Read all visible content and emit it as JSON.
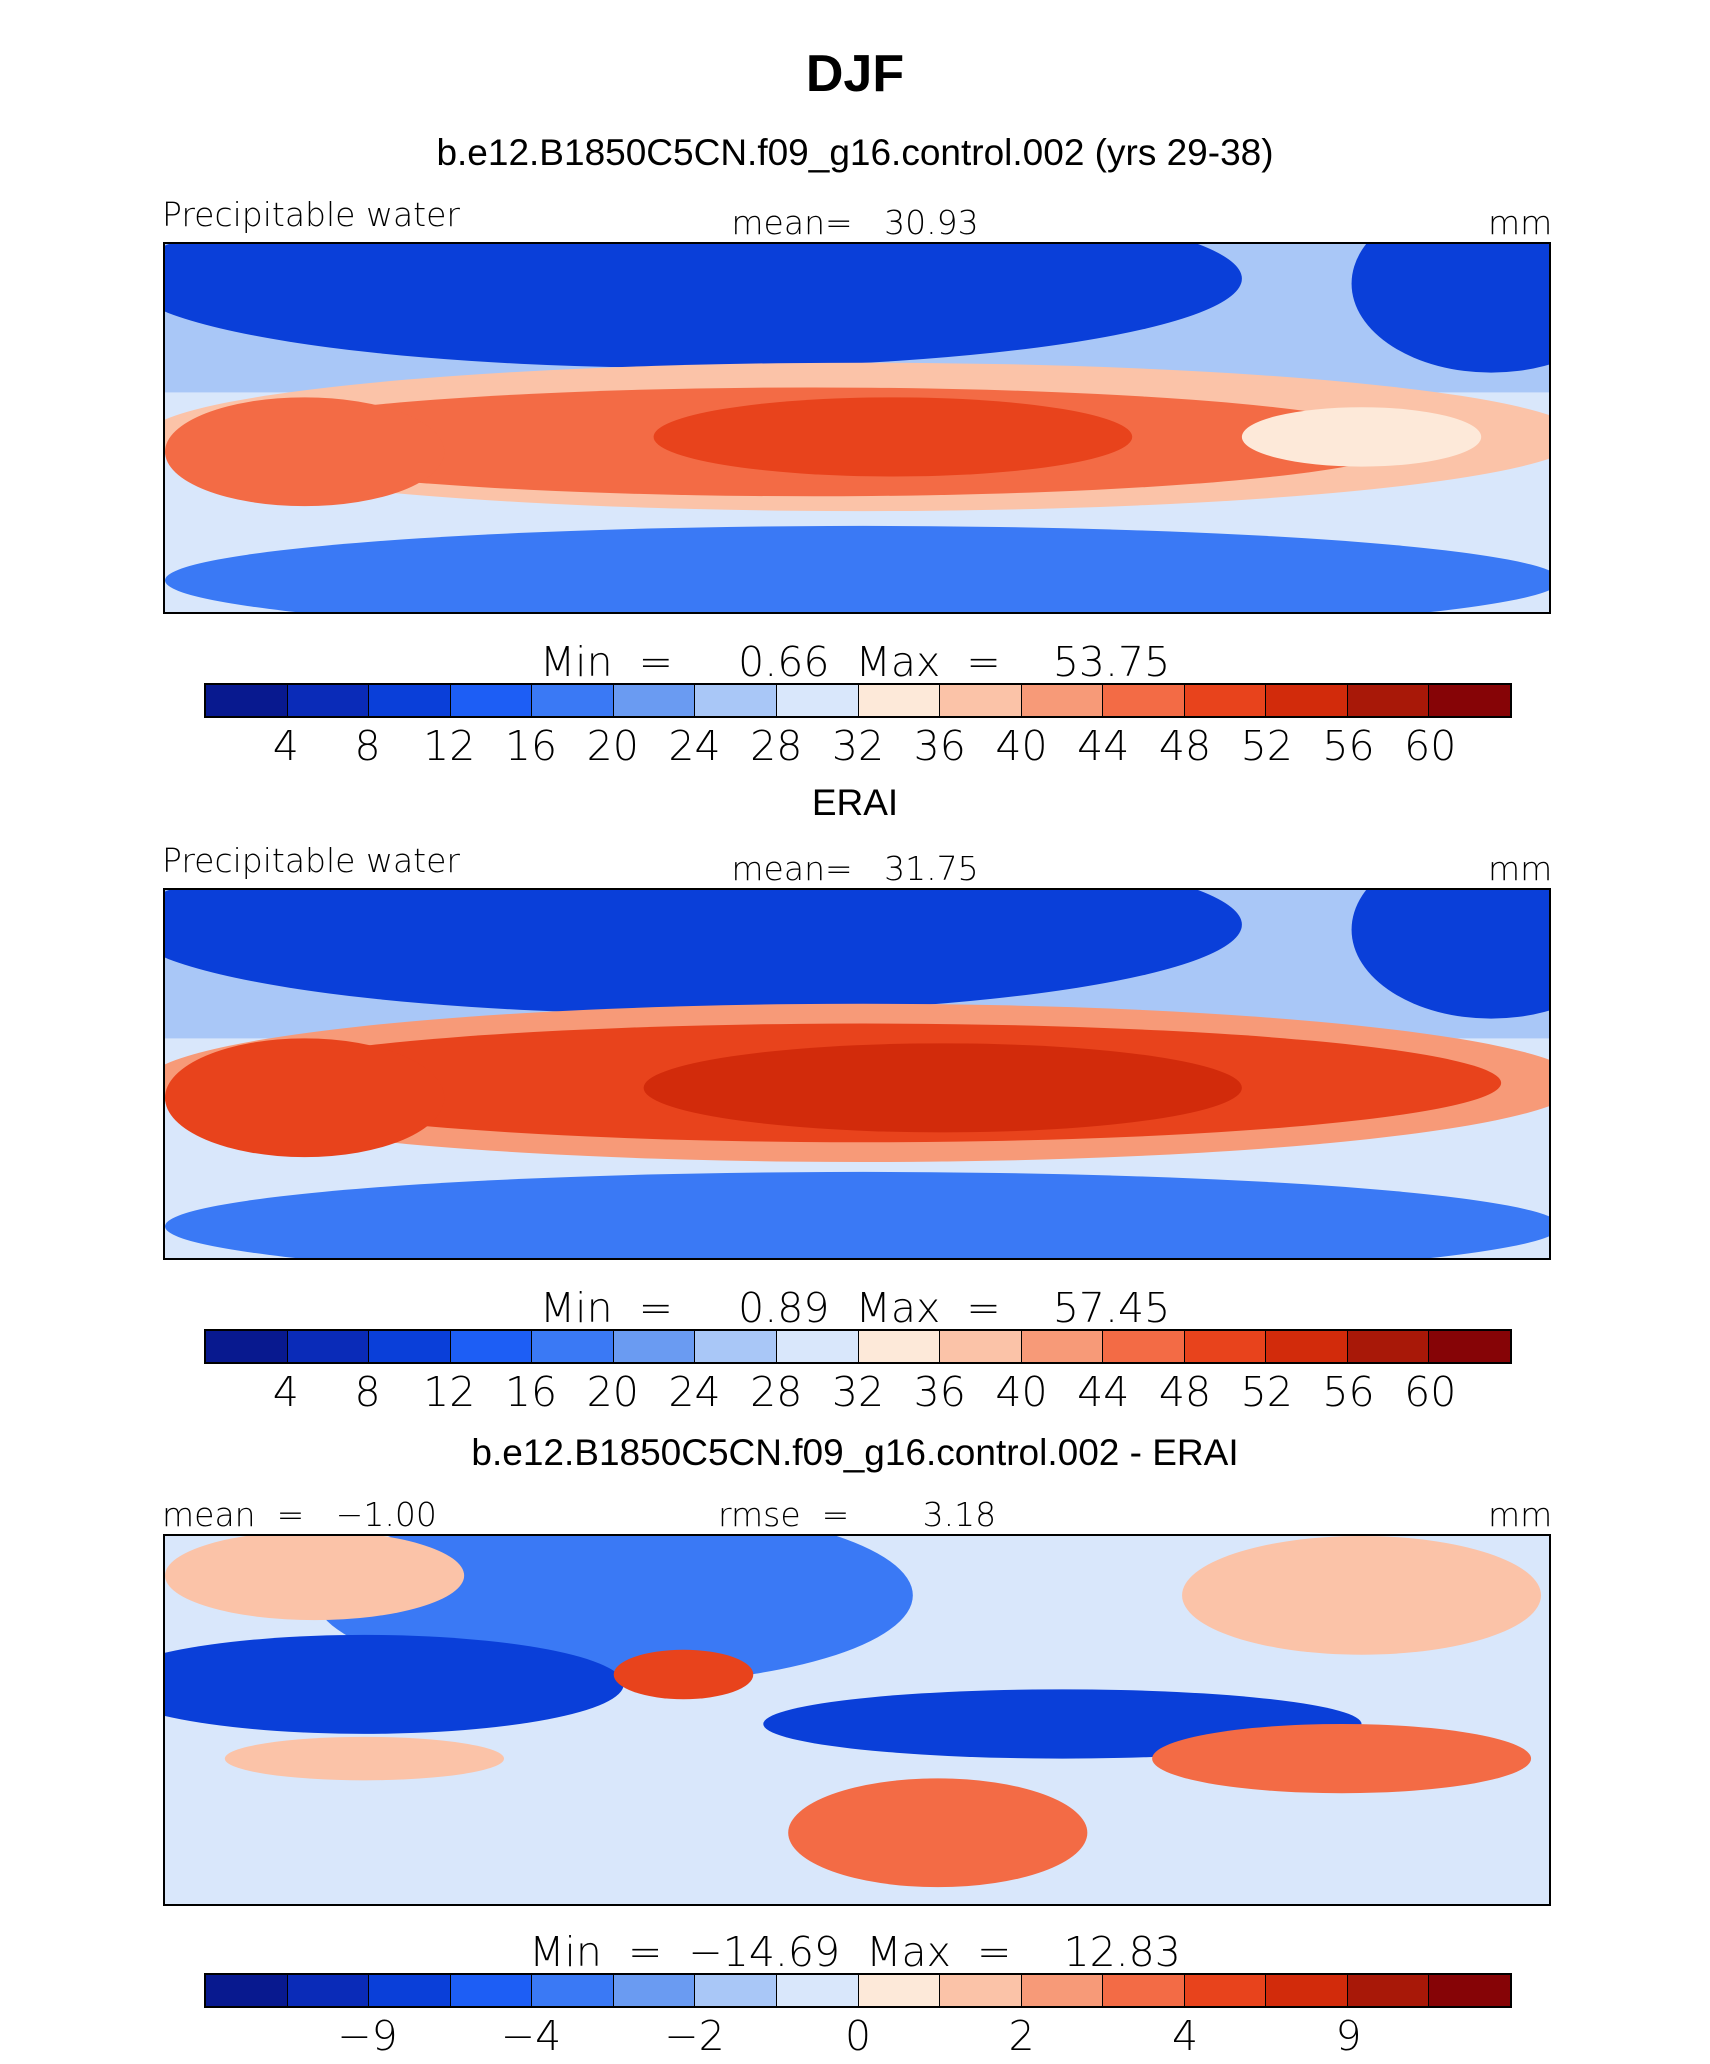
{
  "title": "DJF",
  "colorbar_colors": [
    "#08198f",
    "#0a2bb8",
    "#0a3fd9",
    "#1d5ef5",
    "#3a79f5",
    "#6a9bf2",
    "#a9c7f7",
    "#d9e7fb",
    "#fde9d9",
    "#fbc3a8",
    "#f79a78",
    "#f36b45",
    "#e8431c",
    "#d22b0b",
    "#a81808",
    "#860406"
  ],
  "panels": [
    {
      "title": "b.e12.B1850C5CN.f09_g16.control.002 (yrs 29-38)",
      "left_label": "Precipitable water",
      "center_label": "mean=   30.93",
      "right_label": "mm",
      "minmax": "Min  =     0.66  Max  =    53.75",
      "tick_labels": [
        "4",
        "8",
        "12",
        "16",
        "20",
        "24",
        "28",
        "32",
        "36",
        "40",
        "44",
        "48",
        "52",
        "56",
        "60"
      ],
      "tick_positions": [
        1,
        2,
        3,
        4,
        5,
        6,
        7,
        8,
        9,
        10,
        11,
        12,
        13,
        14,
        15
      ],
      "map_colors": [
        "#0a3fd9",
        "#a9c7f7",
        "#f36b45",
        "#e8431c",
        "#fbc3a8",
        "#3a79f5",
        "#fde9d9"
      ]
    },
    {
      "title": "ERAI",
      "left_label": "Precipitable water",
      "center_label": "mean=   31.75",
      "right_label": "mm",
      "minmax": "Min  =     0.89  Max  =    57.45",
      "tick_labels": [
        "4",
        "8",
        "12",
        "16",
        "20",
        "24",
        "28",
        "32",
        "36",
        "40",
        "44",
        "48",
        "52",
        "56",
        "60"
      ],
      "tick_positions": [
        1,
        2,
        3,
        4,
        5,
        6,
        7,
        8,
        9,
        10,
        11,
        12,
        13,
        14,
        15
      ],
      "map_colors": [
        "#0a3fd9",
        "#a9c7f7",
        "#e8431c",
        "#d22b0b",
        "#f79a78",
        "#3a79f5",
        "#fde9d9"
      ]
    },
    {
      "title": "b.e12.B1850C5CN.f09_g16.control.002 - ERAI",
      "left_label": "mean  =   −1.00",
      "center_label": "rmse  =       3.18",
      "right_label": "mm",
      "minmax": "Min  =  −14.69  Max  =    12.83",
      "tick_labels": [
        "−9",
        "−4",
        "−2",
        "0",
        "2",
        "4",
        "9"
      ],
      "tick_positions": [
        2,
        4,
        6,
        8,
        10,
        12,
        14
      ],
      "map_colors": [
        "#3a79f5",
        "#fbc3a8",
        "#0a3fd9",
        "#f36b45",
        "#d9e7fb",
        "#e8431c",
        "#a9c7f7"
      ]
    }
  ]
}
